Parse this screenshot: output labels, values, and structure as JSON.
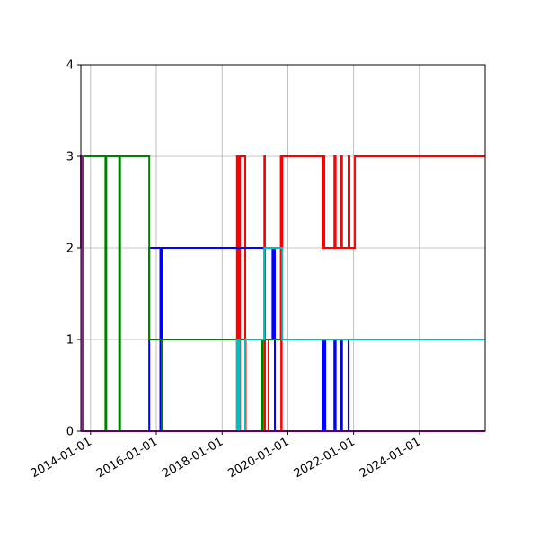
{
  "chart_data": {
    "type": "line",
    "title": "",
    "xlabel": "",
    "ylabel": "",
    "x_axis_type": "date",
    "xlim": [
      "2013-09-15",
      "2025-12-31"
    ],
    "ylim": [
      0,
      4
    ],
    "grid": true,
    "legend": "none",
    "x_ticks": [
      "2014-01-01",
      "2016-01-01",
      "2018-01-01",
      "2020-01-01",
      "2022-01-01",
      "2024-01-01"
    ],
    "y_ticks": [
      "0",
      "1",
      "2",
      "3",
      "4"
    ],
    "series": [
      {
        "color": "#ff0000",
        "x": [
          "2013-09-15",
          "2018-06-15",
          "2018-06-15",
          "2018-06-20",
          "2018-06-20",
          "2018-06-25",
          "2018-06-25",
          "2018-07-01",
          "2018-07-01",
          "2018-07-06",
          "2018-07-06",
          "2018-07-12",
          "2018-07-12",
          "2018-07-20",
          "2018-07-20",
          "2018-09-15",
          "2018-09-15",
          "2018-09-20",
          "2018-09-20",
          "2019-04-15",
          "2019-04-15",
          "2019-04-22",
          "2019-04-22",
          "2019-06-01",
          "2019-06-01",
          "2019-10-15",
          "2019-10-15",
          "2019-10-20",
          "2019-10-20",
          "2019-10-25",
          "2019-10-25",
          "2019-11-01",
          "2019-11-01",
          "2021-01-20",
          "2021-01-20",
          "2021-02-01",
          "2021-02-01",
          "2021-02-10",
          "2021-02-10",
          "2021-02-20",
          "2021-02-20",
          "2021-06-01",
          "2021-06-01",
          "2021-06-15",
          "2021-06-15",
          "2021-08-15",
          "2021-08-15",
          "2021-08-25",
          "2021-08-25",
          "2021-11-05",
          "2021-11-05",
          "2021-11-15",
          "2021-11-15",
          "2022-01-15",
          "2022-01-15",
          "2025-12-31"
        ],
        "y": [
          0,
          0,
          3,
          3,
          0,
          0,
          3,
          3,
          0,
          0,
          3,
          3,
          0,
          0,
          3,
          3,
          0,
          0,
          1,
          1,
          3,
          3,
          0,
          0,
          1,
          1,
          3,
          3,
          0,
          0,
          2,
          2,
          3,
          3,
          2,
          2,
          3,
          3,
          2,
          2,
          2,
          2,
          3,
          3,
          2,
          2,
          3,
          3,
          2,
          2,
          3,
          3,
          2,
          2,
          3,
          3
        ]
      },
      {
        "color": "#0000ff",
        "x": [
          "2013-09-15",
          "2015-10-15",
          "2015-10-15",
          "2016-02-15",
          "2016-02-15",
          "2016-03-01",
          "2016-03-01",
          "2019-07-15",
          "2019-07-15",
          "2019-08-01",
          "2019-08-01",
          "2019-08-10",
          "2019-08-10",
          "2021-01-20",
          "2021-01-20",
          "2021-02-05",
          "2021-02-05",
          "2021-02-20",
          "2021-02-20",
          "2021-06-01",
          "2021-06-01",
          "2021-06-15",
          "2021-06-15",
          "2021-08-15",
          "2021-08-15",
          "2021-08-25",
          "2021-08-25",
          "2021-11-05",
          "2021-11-05",
          "2021-11-15",
          "2021-11-15",
          "2025-12-31"
        ],
        "y": [
          0,
          0,
          2,
          2,
          0,
          0,
          2,
          2,
          1,
          1,
          2,
          2,
          0,
          0,
          1,
          1,
          0,
          0,
          1,
          1,
          0,
          0,
          1,
          1,
          0,
          0,
          1,
          1,
          0,
          0,
          0,
          0
        ]
      },
      {
        "color": "#008000",
        "x": [
          "2013-09-15",
          "2013-10-15",
          "2013-10-15",
          "2014-06-15",
          "2014-06-15",
          "2014-06-25",
          "2014-06-25",
          "2014-11-15",
          "2014-11-15",
          "2014-11-25",
          "2014-11-25",
          "2015-10-15",
          "2015-10-15",
          "2016-03-01",
          "2016-03-01",
          "2016-03-10",
          "2016-03-10",
          "2019-03-15",
          "2019-03-15",
          "2019-04-01",
          "2019-04-01",
          "2025-12-31"
        ],
        "y": [
          0,
          0,
          3,
          3,
          0,
          0,
          3,
          3,
          0,
          0,
          3,
          3,
          1,
          1,
          0,
          0,
          1,
          1,
          0,
          0,
          1,
          1
        ]
      },
      {
        "color": "#00bfbf",
        "x": [
          "2013-09-15",
          "2018-06-15",
          "2018-06-15",
          "2018-06-25",
          "2018-06-25",
          "2018-07-05",
          "2018-07-05",
          "2018-07-15",
          "2018-07-15",
          "2018-09-15",
          "2018-09-15",
          "2018-10-01",
          "2018-10-01",
          "2019-04-15",
          "2019-04-15",
          "2019-05-01",
          "2019-05-01",
          "2019-11-01",
          "2019-11-01",
          "2025-12-31"
        ],
        "y": [
          0,
          0,
          1,
          1,
          0,
          0,
          1,
          1,
          0,
          0,
          1,
          1,
          1,
          1,
          2,
          2,
          2,
          2,
          1,
          1
        ]
      },
      {
        "color": "#bf00bf",
        "x": [
          "2013-09-15",
          "2013-09-15",
          "2013-09-15",
          "2013-10-01",
          "2013-10-01",
          "2013-10-15",
          "2013-10-15",
          "2025-12-31"
        ],
        "y": [
          2,
          2,
          3,
          3,
          0,
          0,
          0,
          0
        ]
      }
    ]
  }
}
